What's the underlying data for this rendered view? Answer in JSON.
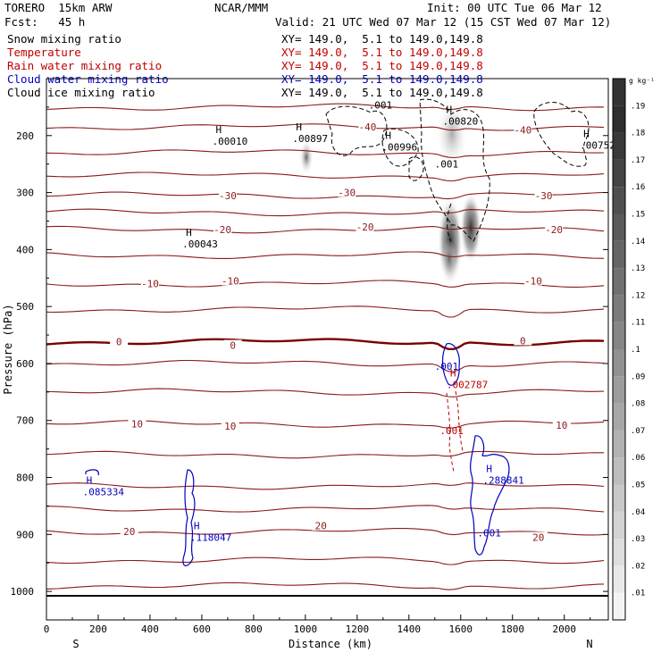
{
  "header": {
    "model": "TORERO  15km ARW",
    "center": "NCAR/MMM",
    "init": "Init: 00 UTC Tue 06 Mar 12",
    "fcst": "Fcst:   45 h",
    "valid": "Valid: 21 UTC Wed 07 Mar 12 (15 CST Wed 07 Mar 12)"
  },
  "fields": [
    {
      "name": "Snow mixing ratio",
      "xy": "XY= 149.0,  5.1 to 149.0,149.8",
      "color": "#000000"
    },
    {
      "name": "Temperature",
      "xy": "XY= 149.0,  5.1 to 149.0,149.8",
      "color": "#c00000"
    },
    {
      "name": "Rain water mixing ratio",
      "xy": "XY= 149.0,  5.1 to 149.0,149.8",
      "color": "#c00000"
    },
    {
      "name": "Cloud water mixing ratio",
      "xy": "XY= 149.0,  5.1 to 149.0,149.8",
      "color": "#0000c0"
    },
    {
      "name": "Cloud ice mixing ratio",
      "xy": "XY= 149.0,  5.1 to 149.0,149.8",
      "color": "#000000"
    }
  ],
  "chart_data": {
    "type": "cross-section contour",
    "xlabel": "Distance (km)",
    "ylabel": "Pressure (hPa)",
    "xlim": [
      0,
      2170
    ],
    "ylim": [
      1050,
      100
    ],
    "x_ticks": [
      0,
      200,
      400,
      600,
      800,
      1000,
      1200,
      1400,
      1600,
      1800,
      2000
    ],
    "y_ticks": [
      200,
      300,
      400,
      500,
      600,
      700,
      800,
      900,
      1000
    ],
    "endpoints": {
      "left": "S",
      "right": "N"
    },
    "temperature_isotherms": [
      {
        "label": "-40",
        "pressure": 185,
        "label_x": 1240
      },
      {
        "label": "-40",
        "pressure": 190,
        "label_x": 1840
      },
      {
        "label": "-30",
        "pressure": 305,
        "label_x": 700
      },
      {
        "label": "-30",
        "pressure": 300,
        "label_x": 1160
      },
      {
        "label": "-30",
        "pressure": 305,
        "label_x": 1920
      },
      {
        "label": "-20",
        "pressure": 365,
        "label_x": 680
      },
      {
        "label": "-20",
        "pressure": 360,
        "label_x": 1230
      },
      {
        "label": "-20",
        "pressure": 365,
        "label_x": 1960
      },
      {
        "label": "-10",
        "pressure": 460,
        "label_x": 400
      },
      {
        "label": "-10",
        "pressure": 455,
        "label_x": 710
      },
      {
        "label": "-10",
        "pressure": 455,
        "label_x": 1880
      },
      {
        "label": "0",
        "pressure": 562,
        "label_x": 280
      },
      {
        "label": "0",
        "pressure": 568,
        "label_x": 720
      },
      {
        "label": "0",
        "pressure": 560,
        "label_x": 1840
      },
      {
        "label": "10",
        "pressure": 706,
        "label_x": 350
      },
      {
        "label": "10",
        "pressure": 710,
        "label_x": 710
      },
      {
        "label": "10",
        "pressure": 708,
        "label_x": 1990
      },
      {
        "label": "20",
        "pressure": 895,
        "label_x": 320
      },
      {
        "label": "20",
        "pressure": 885,
        "label_x": 1060
      },
      {
        "label": "20",
        "pressure": 905,
        "label_x": 1900
      }
    ],
    "isotherm_levels": [
      150,
      185,
      230,
      270,
      305,
      335,
      365,
      410,
      460,
      505,
      562,
      600,
      650,
      706,
      760,
      815,
      855,
      895,
      945,
      990
    ],
    "bold_level": 562,
    "highs": [
      {
        "label": ".00010",
        "x": 640,
        "p": 205,
        "color": "#000000"
      },
      {
        "label": ".00897",
        "x": 950,
        "p": 200,
        "color": "#000000"
      },
      {
        "label": ".00996",
        "x": 1295,
        "p": 215,
        "color": "#000000"
      },
      {
        "label": ".00820",
        "x": 1530,
        "p": 170,
        "color": "#000000"
      },
      {
        "label": ".00752",
        "x": 2060,
        "p": 212,
        "color": "#000000"
      },
      {
        "label": ".00043",
        "x": 525,
        "p": 385,
        "color": "#000000"
      },
      {
        "label": ".085334",
        "x": 140,
        "p": 820,
        "color": "#0000c0"
      },
      {
        "label": ".118047",
        "x": 555,
        "p": 900,
        "color": "#0000c0"
      },
      {
        "label": ".288841",
        "x": 1685,
        "p": 800,
        "color": "#0000c0"
      },
      {
        "label": ".002787",
        "x": 1545,
        "p": 632,
        "color": "#c00000"
      }
    ],
    "contour_labels": [
      {
        "label": ".001",
        "x": 1290,
        "p": 146,
        "color": "#000000"
      },
      {
        "label": ".001",
        "x": 1545,
        "p": 250,
        "color": "#000000"
      },
      {
        "label": ".001",
        "x": 1545,
        "p": 605,
        "color": "#0000c0"
      },
      {
        "label": ".001",
        "x": 1565,
        "p": 718,
        "color": "#c00000"
      },
      {
        "label": ".001",
        "x": 1710,
        "p": 897,
        "color": "#0000c0"
      }
    ],
    "colorbar": {
      "unit": "g kg⁻¹",
      "levels": [
        0.19,
        0.18,
        0.17,
        0.16,
        0.15,
        0.14,
        0.13,
        0.12,
        0.11,
        0.1,
        0.09,
        0.08,
        0.07,
        0.06,
        0.05,
        0.04,
        0.03,
        0.02,
        0.01
      ],
      "tick_labels": [
        ".19",
        ".18",
        ".17",
        ".16",
        ".15",
        ".14",
        ".13",
        ".12",
        ".11",
        ".1",
        ".09",
        ".08",
        ".07",
        ".06",
        ".05",
        ".04",
        ".03",
        ".02",
        ".01"
      ]
    }
  }
}
